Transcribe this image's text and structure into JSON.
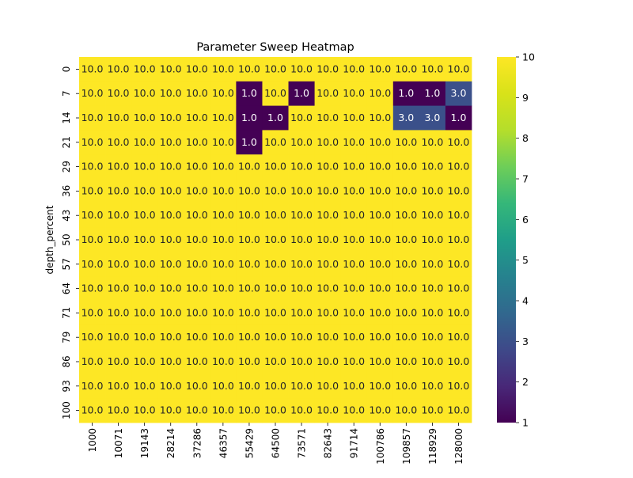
{
  "chart_data": {
    "type": "heatmap",
    "title": "Parameter Sweep Heatmap",
    "xlabel": "",
    "ylabel": "depth_percent",
    "x_categories": [
      "1000",
      "10071",
      "19143",
      "28214",
      "37286",
      "46357",
      "55429",
      "64500",
      "73571",
      "82643",
      "91714",
      "100786",
      "109857",
      "118929",
      "128000"
    ],
    "y_categories": [
      "0",
      "7",
      "14",
      "21",
      "29",
      "36",
      "43",
      "50",
      "57",
      "64",
      "71",
      "79",
      "86",
      "93",
      "100"
    ],
    "values": [
      [
        10,
        10,
        10,
        10,
        10,
        10,
        10,
        10,
        10,
        10,
        10,
        10,
        10,
        10,
        10
      ],
      [
        10,
        10,
        10,
        10,
        10,
        10,
        1,
        10,
        1,
        10,
        10,
        10,
        1,
        1,
        3
      ],
      [
        10,
        10,
        10,
        10,
        10,
        10,
        1,
        1,
        10,
        10,
        10,
        10,
        3,
        3,
        1
      ],
      [
        10,
        10,
        10,
        10,
        10,
        10,
        1,
        10,
        10,
        10,
        10,
        10,
        10,
        10,
        10
      ],
      [
        10,
        10,
        10,
        10,
        10,
        10,
        10,
        10,
        10,
        10,
        10,
        10,
        10,
        10,
        10
      ],
      [
        10,
        10,
        10,
        10,
        10,
        10,
        10,
        10,
        10,
        10,
        10,
        10,
        10,
        10,
        10
      ],
      [
        10,
        10,
        10,
        10,
        10,
        10,
        10,
        10,
        10,
        10,
        10,
        10,
        10,
        10,
        10
      ],
      [
        10,
        10,
        10,
        10,
        10,
        10,
        10,
        10,
        10,
        10,
        10,
        10,
        10,
        10,
        10
      ],
      [
        10,
        10,
        10,
        10,
        10,
        10,
        10,
        10,
        10,
        10,
        10,
        10,
        10,
        10,
        10
      ],
      [
        10,
        10,
        10,
        10,
        10,
        10,
        10,
        10,
        10,
        10,
        10,
        10,
        10,
        10,
        10
      ],
      [
        10,
        10,
        10,
        10,
        10,
        10,
        10,
        10,
        10,
        10,
        10,
        10,
        10,
        10,
        10
      ],
      [
        10,
        10,
        10,
        10,
        10,
        10,
        10,
        10,
        10,
        10,
        10,
        10,
        10,
        10,
        10
      ],
      [
        10,
        10,
        10,
        10,
        10,
        10,
        10,
        10,
        10,
        10,
        10,
        10,
        10,
        10,
        10
      ],
      [
        10,
        10,
        10,
        10,
        10,
        10,
        10,
        10,
        10,
        10,
        10,
        10,
        10,
        10,
        10
      ],
      [
        10,
        10,
        10,
        10,
        10,
        10,
        10,
        10,
        10,
        10,
        10,
        10,
        10,
        10,
        10
      ]
    ],
    "annotation_format": "0.0",
    "colormap": "viridis",
    "colorbar": {
      "vmin": 1,
      "vmax": 10,
      "ticks": [
        "1",
        "2",
        "3",
        "4",
        "5",
        "6",
        "7",
        "8",
        "9",
        "10"
      ]
    },
    "grid": false
  }
}
